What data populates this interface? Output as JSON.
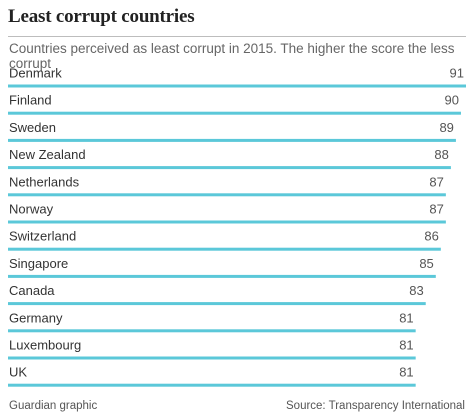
{
  "header": {
    "title": "Least corrupt countries",
    "subtitle": "Countries perceived as least corrupt in 2015. The higher the score the less corrupt"
  },
  "footer": {
    "credit": "Guardian graphic",
    "source": "Source: Transparency International"
  },
  "colors": {
    "bar": "#5bc8d9",
    "text": "#333333"
  },
  "chart_data": {
    "type": "bar",
    "orientation": "horizontal",
    "categories": [
      "Denmark",
      "Finland",
      "Sweden",
      "New Zealand",
      "Netherlands",
      "Norway",
      "Switzerland",
      "Singapore",
      "Canada",
      "Germany",
      "Luxembourg",
      "UK"
    ],
    "values": [
      91,
      90,
      89,
      88,
      87,
      87,
      86,
      85,
      83,
      81,
      81,
      81
    ],
    "data_labels": [
      "91",
      "90",
      "89",
      "88",
      "87",
      "87",
      "86",
      "85",
      "83",
      "81",
      "81",
      "81"
    ],
    "xlim": [
      0,
      91
    ],
    "grid": false,
    "legend": "none"
  }
}
